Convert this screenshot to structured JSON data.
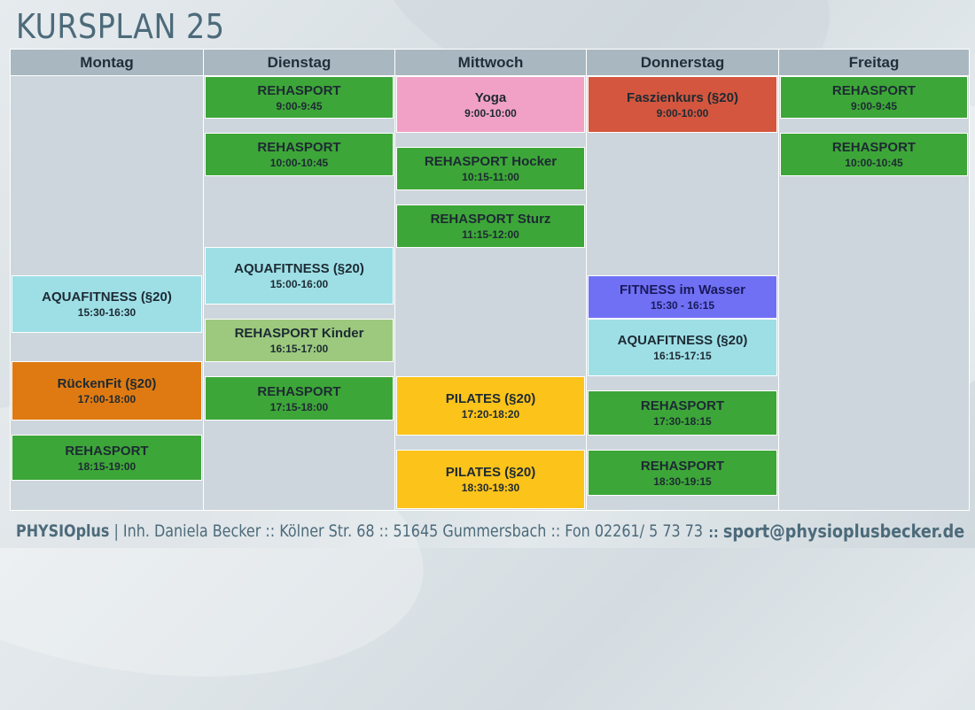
{
  "title": "KURSPLAN 25",
  "colors": {
    "green": "#3da638",
    "light_green": "#9cc97d",
    "pink": "#f2a1c6",
    "red": "#d4563e",
    "cyan": "#9edfe6",
    "orange": "#df7a12",
    "purple": "#7070f5",
    "yellow": "#fcc31a"
  },
  "schedule": {
    "days": [
      {
        "name": "Montag",
        "courses": [
          {
            "name": "AQUAFITNESS (§20)",
            "time": "15:30-16:30",
            "color": "cyan"
          },
          {
            "name": "RückenFit (§20)",
            "time": "17:00-18:00",
            "color": "orange"
          },
          {
            "name": "REHASPORT",
            "time": "18:15-19:00",
            "color": "green"
          }
        ]
      },
      {
        "name": "Dienstag",
        "courses": [
          {
            "name": "REHASPORT",
            "time": "9:00-9:45",
            "color": "green"
          },
          {
            "name": "REHASPORT",
            "time": "10:00-10:45",
            "color": "green"
          },
          {
            "name": "AQUAFITNESS (§20)",
            "time": "15:00-16:00",
            "color": "cyan"
          },
          {
            "name": "REHASPORT Kinder",
            "time": "16:15-17:00",
            "color": "light_green"
          },
          {
            "name": "REHASPORT",
            "time": "17:15-18:00",
            "color": "green"
          }
        ]
      },
      {
        "name": "Mittwoch",
        "courses": [
          {
            "name": "Yoga",
            "time": "9:00-10:00",
            "color": "pink"
          },
          {
            "name": "REHASPORT Hocker",
            "time": "10:15-11:00",
            "color": "green"
          },
          {
            "name": "REHASPORT Sturz",
            "time": "11:15-12:00",
            "color": "green"
          },
          {
            "name": "PILATES (§20)",
            "time": "17:20-18:20",
            "color": "yellow"
          },
          {
            "name": "PILATES (§20)",
            "time": "18:30-19:30",
            "color": "yellow"
          }
        ]
      },
      {
        "name": "Donnerstag",
        "courses": [
          {
            "name": "Faszienkurs (§20)",
            "time": "9:00-10:00",
            "color": "red"
          },
          {
            "name": "FITNESS im Wasser",
            "time": "15:30 - 16:15",
            "color": "purple"
          },
          {
            "name": "AQUAFITNESS (§20)",
            "time": "16:15-17:15",
            "color": "cyan"
          },
          {
            "name": "REHASPORT",
            "time": "17:30-18:15",
            "color": "green"
          },
          {
            "name": "REHASPORT",
            "time": "18:30-19:15",
            "color": "green"
          }
        ]
      },
      {
        "name": "Freitag",
        "courses": [
          {
            "name": "REHASPORT",
            "time": "9:00-9:45",
            "color": "green"
          },
          {
            "name": "REHASPORT",
            "time": "10:00-10:45",
            "color": "green"
          }
        ]
      }
    ]
  },
  "footer": {
    "brand": "PHYSIOplus",
    "address": " | Inh. Daniela Becker :: Kölner Str. 68 :: 51645 Gummersbach :: Fon 02261/ 5 73 73",
    "separator": "::",
    "email": "sport@physioplusbecker.de"
  }
}
